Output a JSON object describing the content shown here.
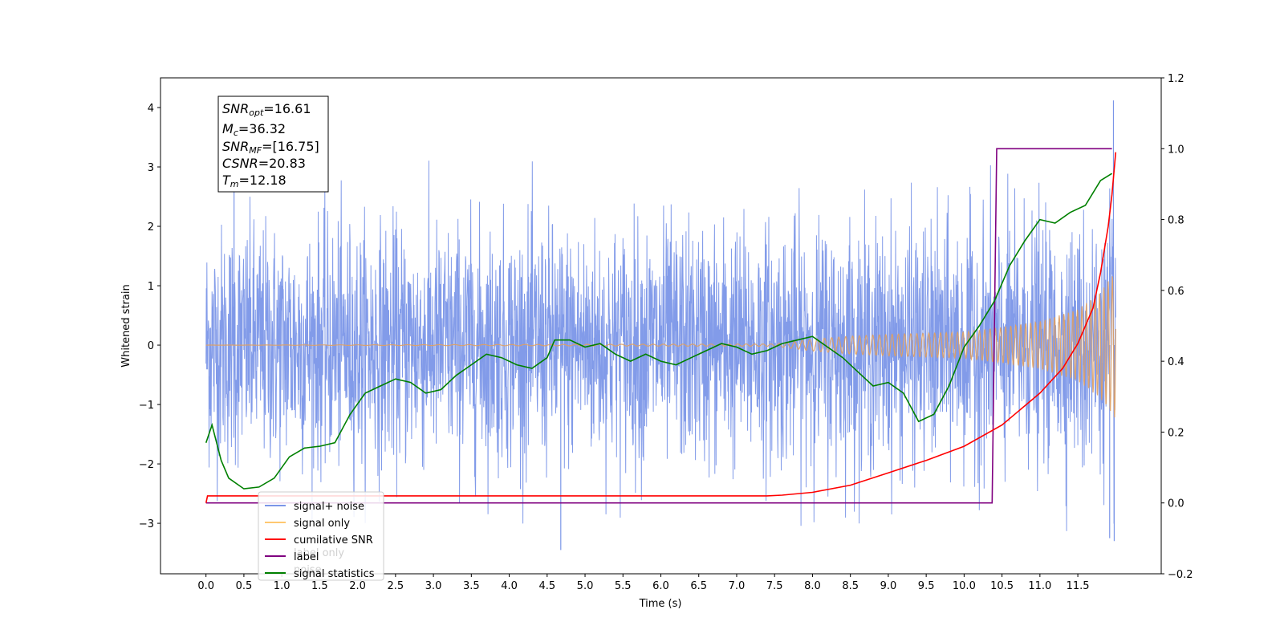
{
  "chart_data": {
    "type": "line",
    "xlabel": "Time (s)",
    "ylabel": "Whitened strain",
    "xlim": [
      -0.6,
      12.6
    ],
    "ylim": [
      -3.85,
      4.5
    ],
    "y2lim": [
      -0.2,
      1.2
    ],
    "x_ticks": [
      "0.0",
      "0.5",
      "1.0",
      "1.5",
      "2.0",
      "2.5",
      "3.0",
      "3.5",
      "4.0",
      "4.5",
      "5.0",
      "5.5",
      "6.0",
      "6.5",
      "7.0",
      "7.5",
      "8.0",
      "8.5",
      "9.0",
      "9.5",
      "10.0",
      "10.5",
      "11.0",
      "11.5"
    ],
    "x_tick_values": [
      0,
      0.5,
      1,
      1.5,
      2,
      2.5,
      3,
      3.5,
      4,
      4.5,
      5,
      5.5,
      6,
      6.5,
      7,
      7.5,
      8,
      8.5,
      9,
      9.5,
      10,
      10.5,
      11,
      11.5
    ],
    "y_ticks": [
      "−3",
      "−2",
      "−1",
      "0",
      "1",
      "2",
      "3",
      "4"
    ],
    "y_tick_values": [
      -3,
      -2,
      -1,
      0,
      1,
      2,
      3,
      4
    ],
    "y2_ticks": [
      "−0.2",
      "0.0",
      "0.2",
      "0.4",
      "0.6",
      "0.8",
      "1.0",
      "1.2"
    ],
    "y2_tick_values": [
      -0.2,
      0,
      0.2,
      0.4,
      0.6,
      0.8,
      1.0,
      1.2
    ],
    "annotation": [
      {
        "sym": "SNR",
        "sub": "opt",
        "rest": "=16.61"
      },
      {
        "sym": "M",
        "sub": "c",
        "rest": "=36.32"
      },
      {
        "sym": "SNR",
        "sub": "MF",
        "rest": "=[16.75]"
      },
      {
        "sym": "CSNR",
        "sub": "",
        "rest": "=20.83"
      },
      {
        "sym": "T",
        "sub": "m",
        "rest": "=12.18"
      }
    ],
    "legend": {
      "placement": "lower-left",
      "entries": [
        {
          "label": "signal+ noise",
          "color": "#7b96e8"
        },
        {
          "label": "signal only",
          "color": "#ffc870"
        },
        {
          "label": "cumilative SNR",
          "color": "#ff0000"
        },
        {
          "label": "label",
          "color": "#800080"
        },
        {
          "label": "signal statistics",
          "color": "#008000"
        }
      ],
      "hidden_text": [
        "label only",
        "noise"
      ]
    },
    "series": [
      {
        "name": "signal+ noise",
        "axis": "left",
        "color": "#7b96e8",
        "t_range": [
          0,
          12.0
        ],
        "sigma": 1.0,
        "peaks": [
          [
            0.37,
            3.7
          ],
          [
            11.97,
            4.12
          ],
          [
            4.68,
            -3.45
          ],
          [
            11.98,
            -3.3
          ],
          [
            11.92,
            -3.25
          ]
        ]
      },
      {
        "name": "signal only",
        "axis": "left",
        "color": "#e0a060",
        "envelope": [
          [
            0,
            0
          ],
          [
            7.5,
            0.02
          ],
          [
            8.0,
            0.1
          ],
          [
            8.5,
            0.15
          ],
          [
            9.0,
            0.18
          ],
          [
            9.5,
            0.2
          ],
          [
            10.0,
            0.22
          ],
          [
            10.5,
            0.3
          ],
          [
            11.0,
            0.4
          ],
          [
            11.5,
            0.6
          ],
          [
            11.8,
            0.9
          ],
          [
            12.0,
            1.25
          ]
        ]
      },
      {
        "name": "cumilative SNR",
        "axis": "right",
        "color": "#ff0000",
        "x": [
          0,
          0.02,
          7.4,
          7.6,
          8.0,
          8.5,
          9.0,
          9.5,
          10.0,
          10.5,
          11.0,
          11.3,
          11.5,
          11.7,
          11.8,
          11.9,
          11.95,
          12.0
        ],
        "y": [
          0,
          0.02,
          0.02,
          0.022,
          0.03,
          0.05,
          0.085,
          0.12,
          0.16,
          0.22,
          0.31,
          0.38,
          0.45,
          0.55,
          0.65,
          0.78,
          0.87,
          0.99
        ]
      },
      {
        "name": "label",
        "axis": "right",
        "color": "#800080",
        "x": [
          0,
          10.37,
          10.43,
          11.95
        ],
        "y": [
          0,
          0,
          1.0,
          1.0
        ]
      },
      {
        "name": "signal statistics",
        "axis": "right",
        "color": "#008000",
        "x": [
          0,
          0.08,
          0.2,
          0.3,
          0.5,
          0.7,
          0.9,
          1.1,
          1.3,
          1.5,
          1.7,
          1.9,
          2.1,
          2.3,
          2.5,
          2.7,
          2.9,
          3.1,
          3.3,
          3.5,
          3.7,
          3.9,
          4.1,
          4.3,
          4.5,
          4.6,
          4.8,
          5.0,
          5.2,
          5.4,
          5.6,
          5.8,
          6.0,
          6.2,
          6.4,
          6.6,
          6.8,
          7.0,
          7.2,
          7.4,
          7.6,
          7.8,
          8.0,
          8.2,
          8.4,
          8.6,
          8.8,
          9.0,
          9.2,
          9.4,
          9.6,
          9.8,
          10.0,
          10.2,
          10.4,
          10.6,
          10.8,
          11.0,
          11.2,
          11.4,
          11.6,
          11.8,
          11.95
        ],
        "y": [
          0.17,
          0.22,
          0.12,
          0.07,
          0.04,
          0.045,
          0.07,
          0.13,
          0.155,
          0.16,
          0.17,
          0.25,
          0.31,
          0.33,
          0.35,
          0.34,
          0.31,
          0.32,
          0.36,
          0.39,
          0.42,
          0.41,
          0.39,
          0.38,
          0.41,
          0.46,
          0.46,
          0.44,
          0.45,
          0.42,
          0.4,
          0.42,
          0.4,
          0.39,
          0.41,
          0.43,
          0.45,
          0.44,
          0.42,
          0.43,
          0.45,
          0.46,
          0.47,
          0.44,
          0.41,
          0.37,
          0.33,
          0.34,
          0.31,
          0.23,
          0.25,
          0.33,
          0.44,
          0.5,
          0.57,
          0.67,
          0.74,
          0.8,
          0.79,
          0.82,
          0.84,
          0.91,
          0.93
        ]
      }
    ]
  }
}
